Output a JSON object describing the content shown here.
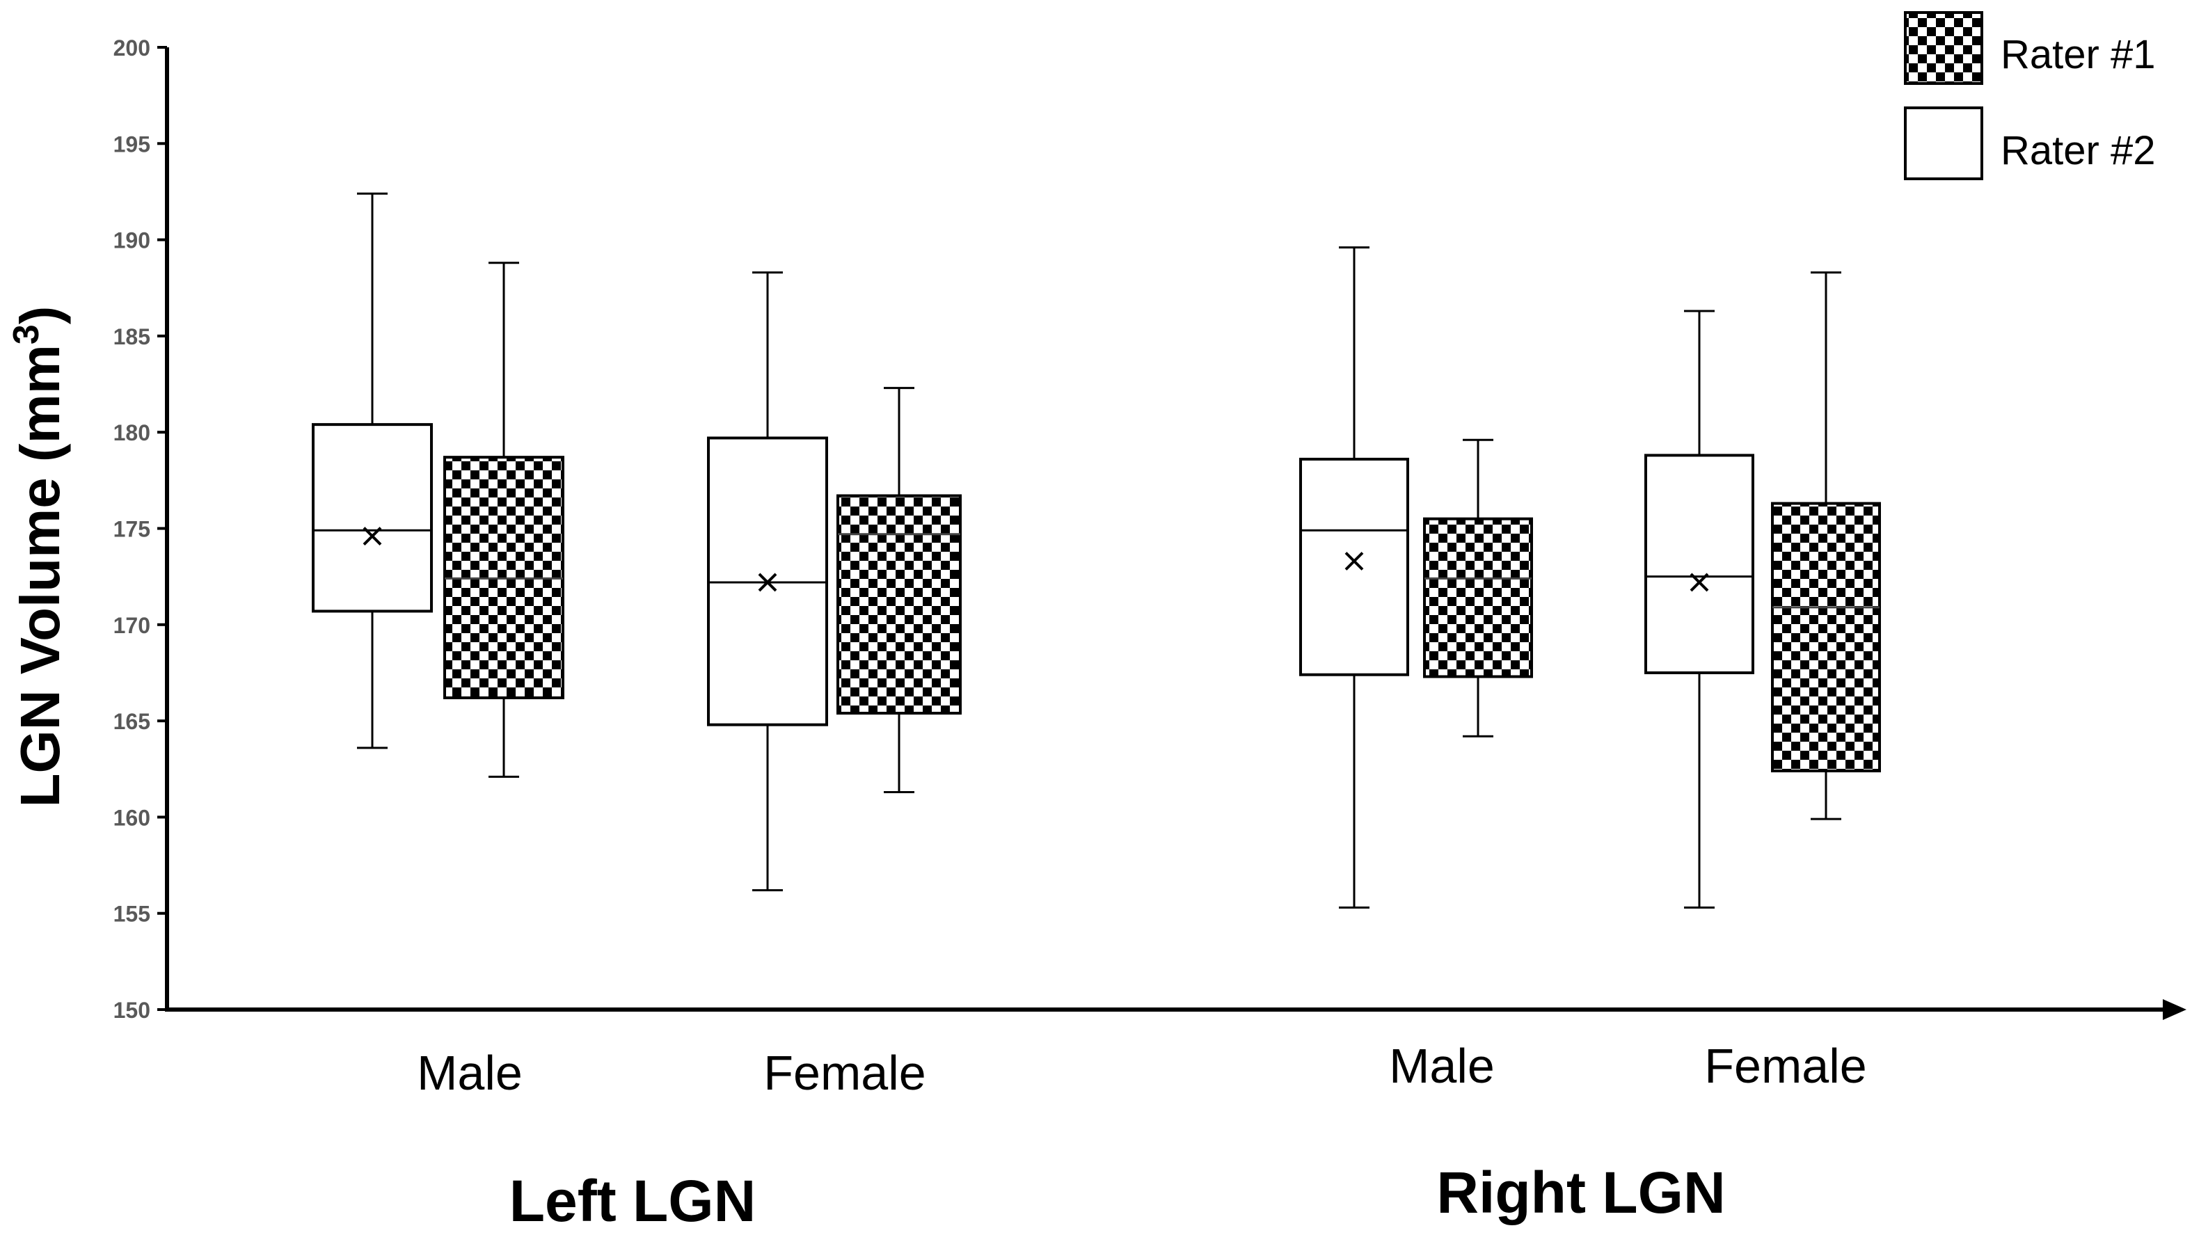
{
  "chart_data": {
    "type": "box",
    "ylabel": "LGN Volume (mm",
    "ylabel_sup": "3",
    "ylabel_close": ")",
    "ylim": [
      150,
      200
    ],
    "yticks": [
      150,
      155,
      160,
      165,
      170,
      175,
      180,
      185,
      190,
      195,
      200
    ],
    "groups": [
      {
        "label": "Left LGN",
        "categories": [
          "Male",
          "Female"
        ]
      },
      {
        "label": "Right LGN",
        "categories": [
          "Male",
          "Female"
        ]
      }
    ],
    "legend": {
      "position": "top-right",
      "entries": [
        {
          "label": "Rater #1",
          "pattern": "checkerboard"
        },
        {
          "label": "Rater #2",
          "pattern": "white"
        }
      ]
    },
    "boxes": [
      {
        "group": "Left LGN",
        "category": "Male",
        "series": "Rater #2",
        "min": 163.6,
        "q1": 170.7,
        "median": 174.9,
        "q3": 180.4,
        "max": 192.4,
        "mean": 174.6
      },
      {
        "group": "Left LGN",
        "category": "Male",
        "series": "Rater #1",
        "min": 162.1,
        "q1": 166.2,
        "median": 172.4,
        "q3": 178.7,
        "max": 188.8,
        "mean": 172.4
      },
      {
        "group": "Left LGN",
        "category": "Female",
        "series": "Rater #2",
        "min": 156.2,
        "q1": 164.8,
        "median": 172.2,
        "q3": 179.7,
        "max": 188.3,
        "mean": 172.2
      },
      {
        "group": "Left LGN",
        "category": "Female",
        "series": "Rater #1",
        "min": 161.3,
        "q1": 165.4,
        "median": 174.7,
        "q3": 176.7,
        "max": 182.3,
        "mean": 172.7
      },
      {
        "group": "Right LGN",
        "category": "Male",
        "series": "Rater #2",
        "min": 155.3,
        "q1": 167.4,
        "median": 174.9,
        "q3": 178.6,
        "max": 189.6,
        "mean": 173.3
      },
      {
        "group": "Right LGN",
        "category": "Male",
        "series": "Rater #1",
        "min": 164.2,
        "q1": 167.3,
        "median": 172.4,
        "q3": 175.5,
        "max": 179.6,
        "mean": 172.1
      },
      {
        "group": "Right LGN",
        "category": "Female",
        "series": "Rater #2",
        "min": 155.3,
        "q1": 167.5,
        "median": 172.5,
        "q3": 178.8,
        "max": 186.3,
        "mean": 172.2
      },
      {
        "group": "Right LGN",
        "category": "Female",
        "series": "Rater #1",
        "min": 159.9,
        "q1": 162.4,
        "median": 170.9,
        "q3": 176.3,
        "max": 188.3,
        "mean": 170.9
      }
    ]
  }
}
